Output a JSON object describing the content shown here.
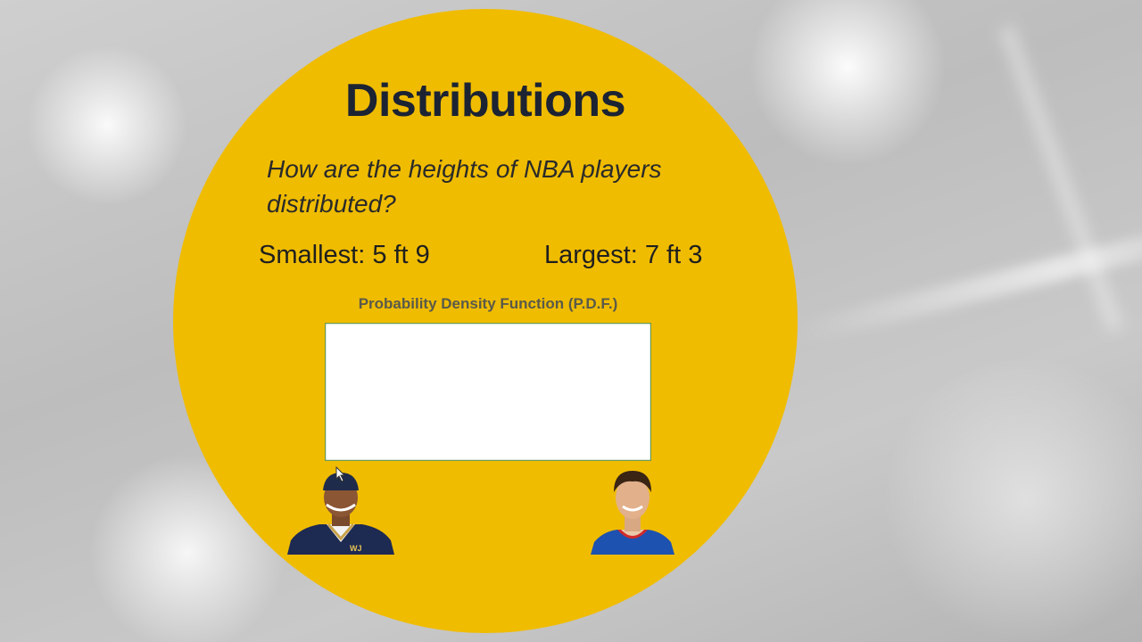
{
  "slide": {
    "title": "Distributions",
    "question": "How are the heights of NBA players distributed?",
    "smallest": "Smallest: 5 ft 9",
    "largest": "Largest: 7 ft 3",
    "accent_color": "#f0bc00",
    "curve_color": "#a8cc8c"
  },
  "chart_data": {
    "type": "area",
    "title": "Probability Density Function (P.D.F.)",
    "xlabel": "",
    "ylabel": "",
    "distribution": "normal",
    "grid": false,
    "legend": "none"
  },
  "players": {
    "left_icon": "shorter-player-photo",
    "right_icon": "taller-player-photo"
  }
}
